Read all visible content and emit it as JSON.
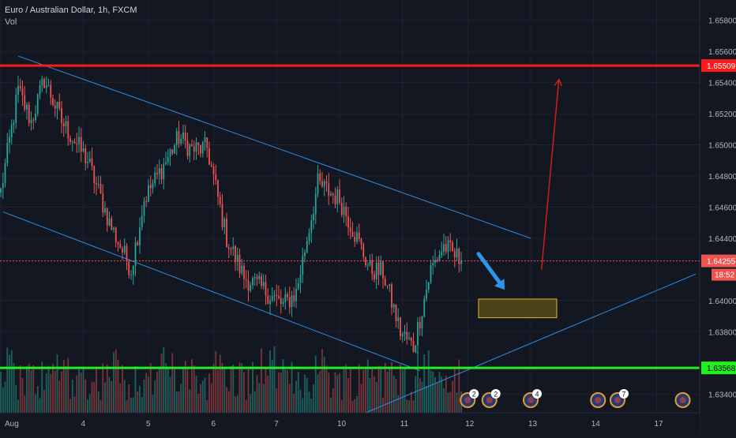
{
  "header": {
    "symbol_title": "Euro / Australian Dollar, 1h, FXCM",
    "volume_label": "Vol"
  },
  "colors": {
    "background": "#131722",
    "grid": "#1e2230",
    "axis_text": "#b2b5be",
    "bull": "#26a69a",
    "bear": "#ef5350",
    "bull_vol": "#1f6f67",
    "bear_vol": "#8a3a3d",
    "resistance": "#ff1a1a",
    "support": "#22ee22",
    "channel": "#2f8ce0",
    "target_arrow": "#d81b1b",
    "projection_arrow": "#2f95e8",
    "zone_fill": "#4a4318",
    "zone_border": "#e6b422"
  },
  "chart_data": {
    "type": "candlestick",
    "title": "Euro / Australian Dollar, 1h, FXCM",
    "y_ticks": [
      "1.65800",
      "1.65600",
      "1.65400",
      "1.65200",
      "1.65000",
      "1.64800",
      "1.64600",
      "1.64400",
      "1.64000",
      "1.63800",
      "1.63400"
    ],
    "x_ticks": [
      "Aug",
      "4",
      "5",
      "6",
      "7",
      "10",
      "11",
      "12",
      "13",
      "14",
      "17"
    ],
    "ylim": [
      1.6328,
      1.6593
    ],
    "resistance_level": {
      "value": 1.65509,
      "label": "1.65509"
    },
    "support_level": {
      "value": 1.63568,
      "label": "1.63568"
    },
    "last_price": {
      "value": 1.64255,
      "label": "1.64255",
      "countdown": "18:52"
    },
    "anchor_points": [
      {
        "bar": 0,
        "price": 1.647
      },
      {
        "bar": 8,
        "price": 1.6535
      },
      {
        "bar": 14,
        "price": 1.6515
      },
      {
        "bar": 20,
        "price": 1.6542
      },
      {
        "bar": 28,
        "price": 1.6515
      },
      {
        "bar": 40,
        "price": 1.649
      },
      {
        "bar": 50,
        "price": 1.645
      },
      {
        "bar": 60,
        "price": 1.642
      },
      {
        "bar": 66,
        "price": 1.6465
      },
      {
        "bar": 75,
        "price": 1.6487
      },
      {
        "bar": 82,
        "price": 1.6505
      },
      {
        "bar": 88,
        "price": 1.6497
      },
      {
        "bar": 95,
        "price": 1.6498
      },
      {
        "bar": 104,
        "price": 1.644
      },
      {
        "bar": 112,
        "price": 1.6415
      },
      {
        "bar": 120,
        "price": 1.6408
      },
      {
        "bar": 130,
        "price": 1.6397
      },
      {
        "bar": 136,
        "price": 1.6405
      },
      {
        "bar": 146,
        "price": 1.6475
      },
      {
        "bar": 156,
        "price": 1.6465
      },
      {
        "bar": 164,
        "price": 1.644
      },
      {
        "bar": 170,
        "price": 1.642
      },
      {
        "bar": 176,
        "price": 1.6418
      },
      {
        "bar": 184,
        "price": 1.638
      },
      {
        "bar": 190,
        "price": 1.637
      },
      {
        "bar": 198,
        "price": 1.642
      },
      {
        "bar": 204,
        "price": 1.6435
      },
      {
        "bar": 212,
        "price": 1.64255
      }
    ],
    "channel_upper": {
      "from": {
        "bar": 8,
        "price": 1.6557
      },
      "to": {
        "bar": 244,
        "price": 1.644
      }
    },
    "channel_lower": {
      "from": {
        "bar": 1,
        "price": 1.6457
      },
      "to": {
        "bar": 193,
        "price": 1.6355
      }
    },
    "rising_trendline": {
      "from": {
        "bar": 168,
        "price": 1.6328
      },
      "to": {
        "bar": 320,
        "price": 1.6417
      }
    },
    "target_arrow": {
      "from": {
        "bar": 249,
        "price": 1.642
      },
      "to": {
        "bar": 257,
        "price": 1.6542
      }
    },
    "projection_arrow": {
      "from": {
        "bar": 220,
        "price": 1.643
      },
      "to": {
        "bar": 232,
        "price": 1.6407
      }
    },
    "target_zone": {
      "bar_start": 220,
      "bar_end": 256,
      "price_top": 1.6401,
      "price_bottom": 1.6389
    },
    "event_markers": [
      {
        "bar": 215,
        "count": "2"
      },
      {
        "bar": 225,
        "count": "2"
      },
      {
        "bar": 244,
        "count": "4"
      },
      {
        "bar": 275,
        "count": ""
      },
      {
        "bar": 284,
        "count": "7"
      },
      {
        "bar": 314,
        "count": ""
      }
    ]
  }
}
